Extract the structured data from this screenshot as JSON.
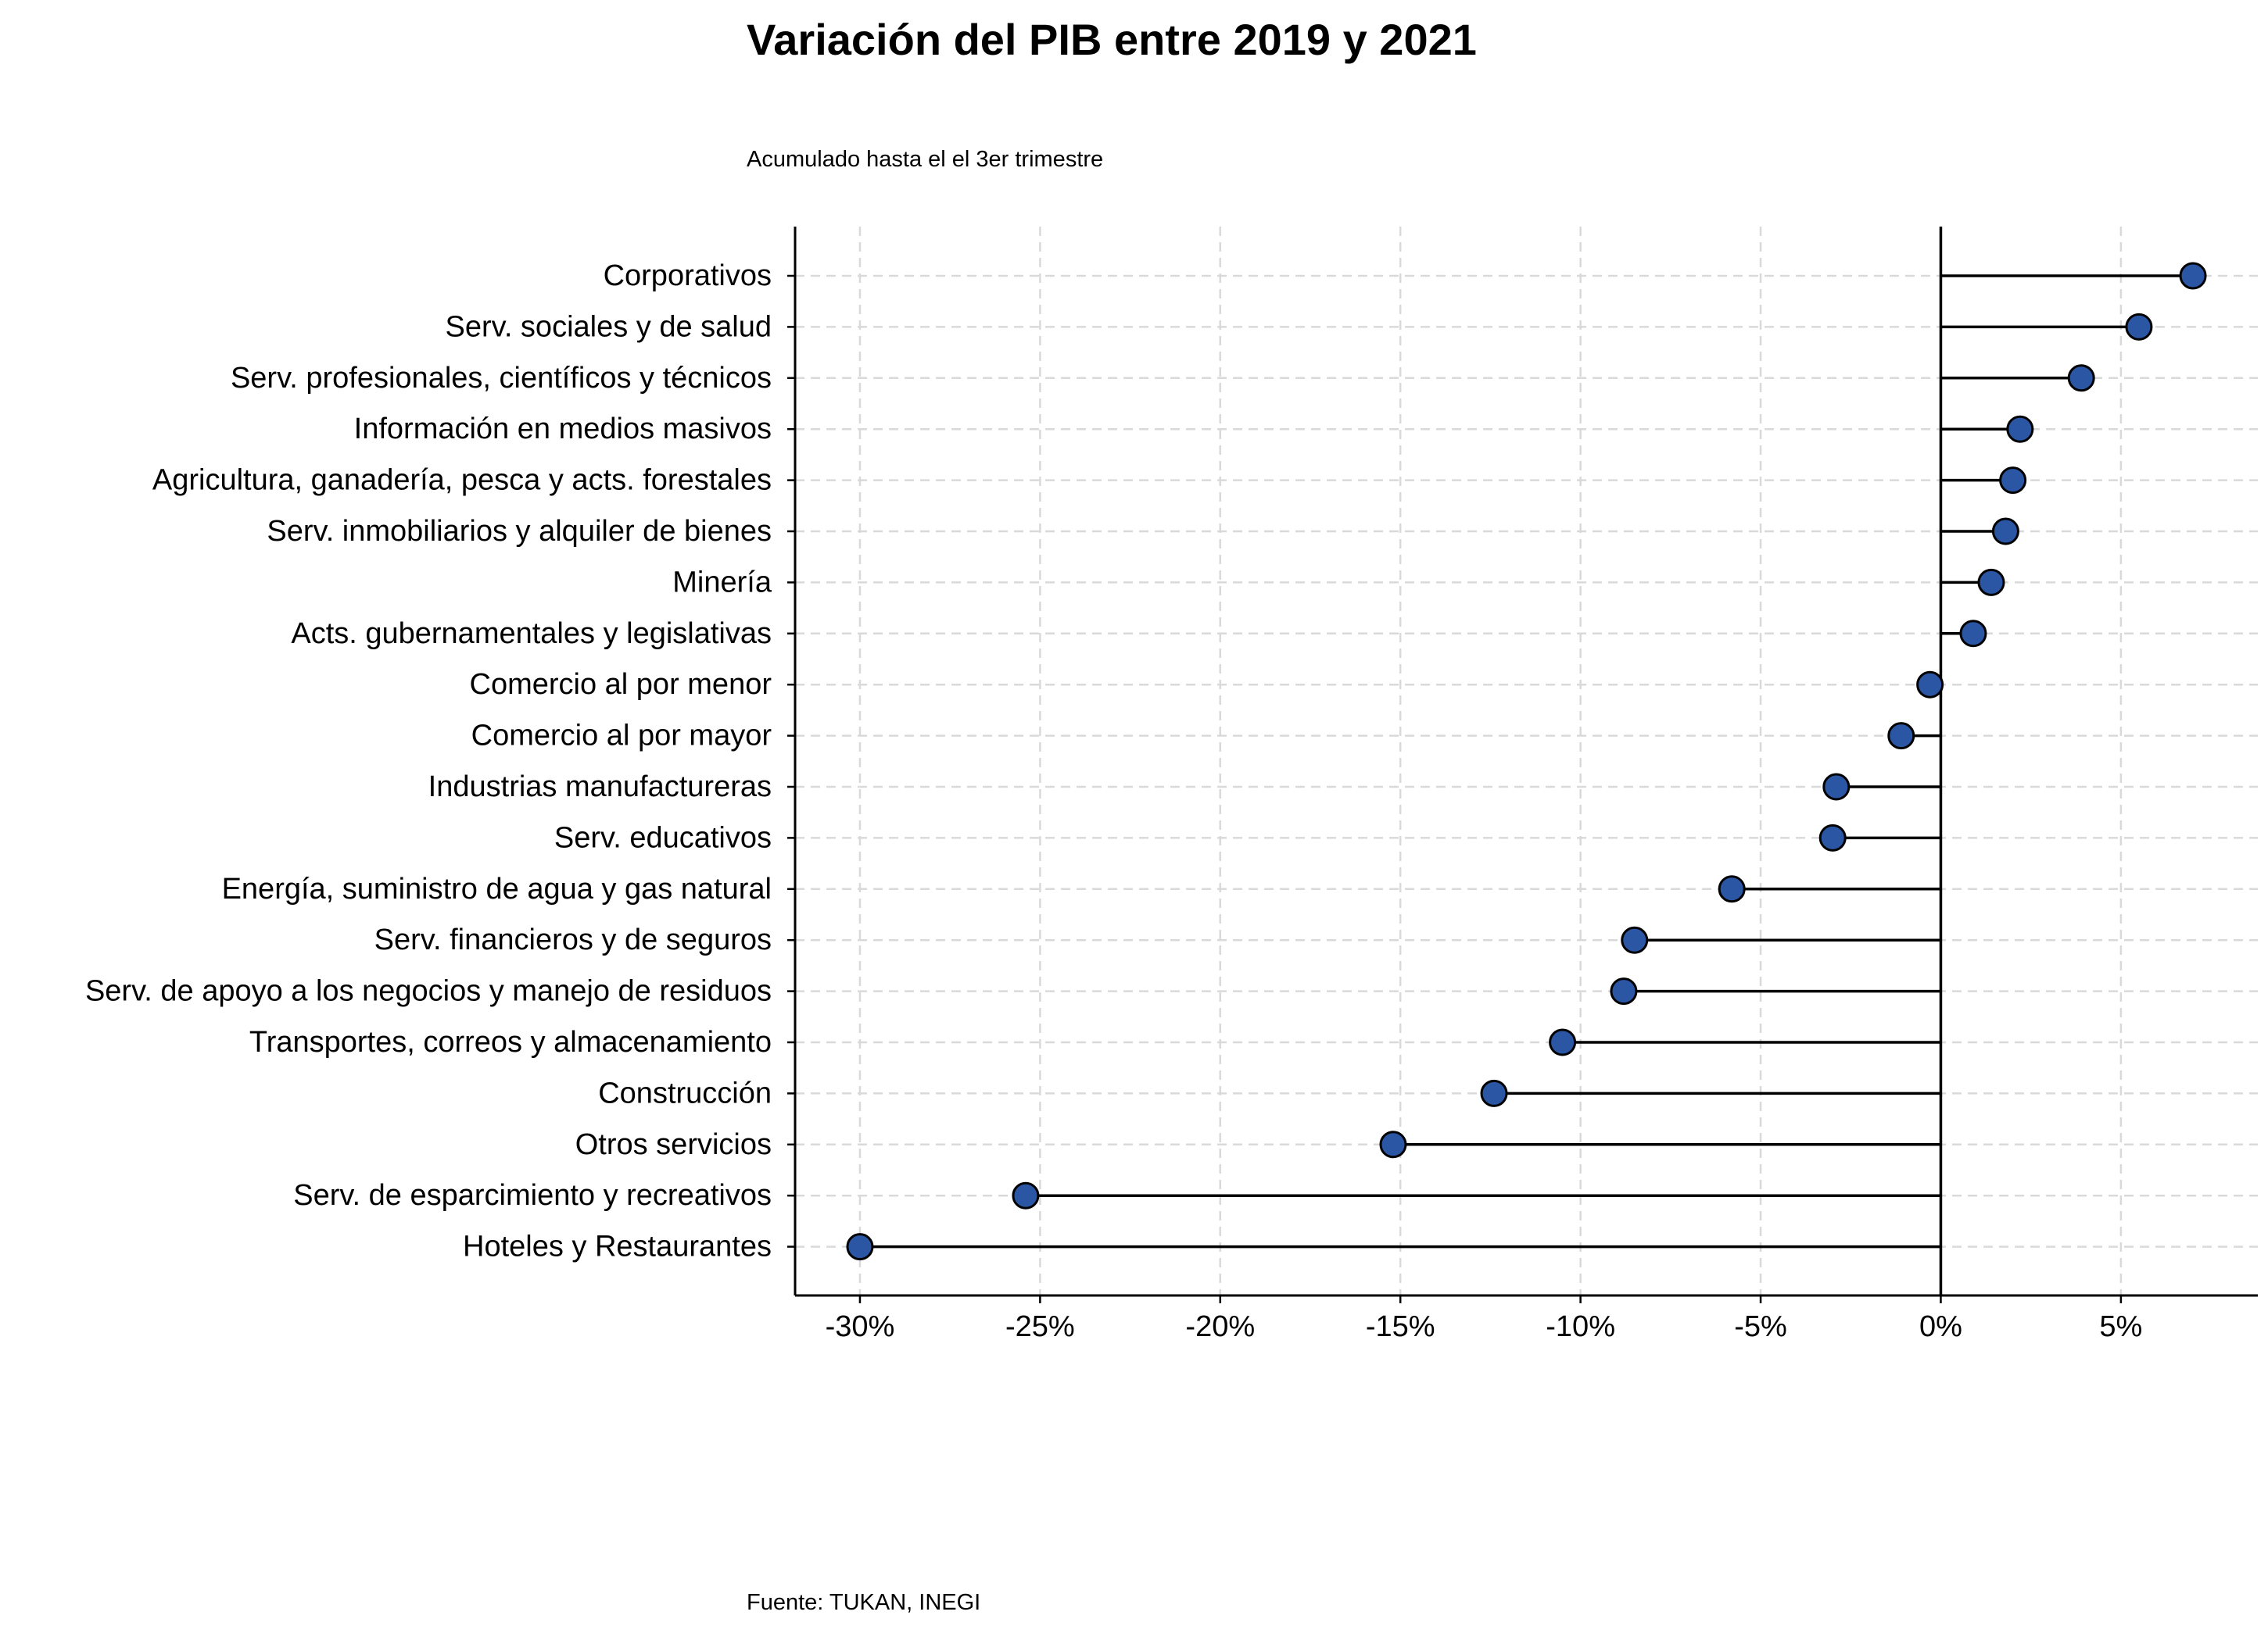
{
  "chart_data": {
    "type": "lollipop",
    "title": "Variación del PIB entre 2019 y 2021",
    "subtitle": "Acumulado hasta el el 3er trimestre",
    "source": "Fuente: TUKAN, INEGI",
    "xlabel": "",
    "ylabel": "",
    "xlim": [
      -31.8,
      8.8
    ],
    "x_ticks": [
      -30,
      -25,
      -20,
      -15,
      -10,
      -5,
      0,
      5
    ],
    "x_tick_labels": [
      "-30%",
      "-25%",
      "-20%",
      "-15%",
      "-10%",
      "-5%",
      "0%",
      "5%"
    ],
    "grid": true,
    "categories": [
      "Corporativos",
      "Serv. sociales y de salud",
      "Serv. profesionales, científicos y técnicos",
      "Información en medios masivos",
      "Agricultura, ganadería, pesca y acts. forestales",
      "Serv. inmobiliarios y alquiler de bienes",
      "Minería",
      "Acts. gubernamentales y legislativas",
      "Comercio al por menor",
      "Comercio al por mayor",
      "Industrias manufactureras",
      "Serv. educativos",
      "Energía, suministro de agua y gas natural",
      "Serv. financieros y de seguros",
      "Serv. de apoyo a los negocios y manejo de residuos",
      "Transportes, correos y almacenamiento",
      "Construcción",
      "Otros servicios",
      "Serv. de esparcimiento y recreativos",
      "Hoteles y Restaurantes"
    ],
    "values": [
      7.0,
      5.5,
      3.9,
      2.2,
      2.0,
      1.8,
      1.4,
      0.9,
      -0.3,
      -1.1,
      -2.9,
      -3.0,
      -5.8,
      -8.5,
      -8.8,
      -10.5,
      -12.4,
      -15.2,
      -25.4,
      -30.0
    ],
    "colors": {
      "marker_fill": "#2a56a4",
      "marker_edge": "#000000",
      "stem": "#000000",
      "grid": "#d9d9d9",
      "axis": "#000000"
    }
  }
}
